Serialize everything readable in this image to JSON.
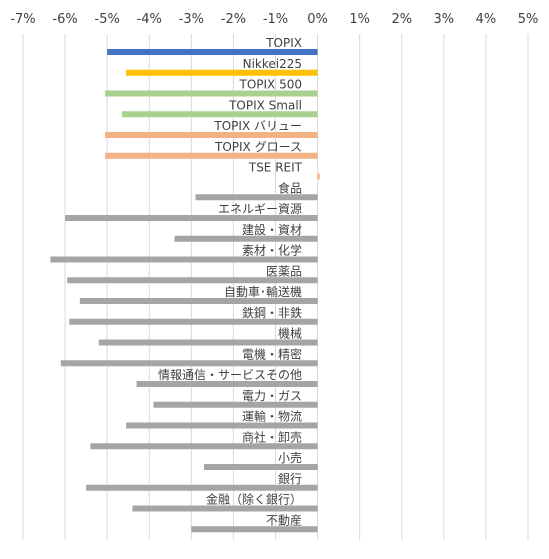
{
  "chart_data": {
    "type": "bar",
    "orientation": "horizontal",
    "xlim": [
      -7,
      5
    ],
    "tick_values": [
      -7,
      -6,
      -5,
      -4,
      -3,
      -2,
      -1,
      0,
      1,
      2,
      3,
      4,
      5
    ],
    "tick_labels": [
      "-7%",
      "-6%",
      "-5%",
      "-4%",
      "-3%",
      "-2%",
      "-1%",
      "0%",
      "1%",
      "2%",
      "3%",
      "4%",
      "5%"
    ],
    "axis_position": "top",
    "grid": "vertical",
    "legend": "none",
    "colors": {
      "topix": "#4472C4",
      "nikkei": "#FFC000",
      "green": "#A9D18E",
      "orange": "#F4B183",
      "sector": "#A5A5A5",
      "grid": "#D9D9D9",
      "text": "#404040"
    },
    "categories": [
      "TOPIX",
      "Nikkei225",
      "TOPIX 500",
      "TOPIX Small",
      "TOPIX バリュー",
      "TOPIX グロース",
      "TSE REIT",
      "食品",
      "エネルギー資源",
      "建設・資材",
      "素材・化学",
      "医薬品",
      "自動車･輸送機",
      "鉄鋼・非鉄",
      "機械",
      "電機・精密",
      "情報通信・サービスその他",
      "電力・ガス",
      "運輸・物流",
      "商社・卸売",
      "小売",
      "銀行",
      "金融（除く銀行）",
      "不動産"
    ],
    "values": [
      -5.0,
      -4.55,
      -5.05,
      -4.65,
      -5.05,
      -5.05,
      0.05,
      -2.9,
      -6.0,
      -3.4,
      -6.35,
      -5.95,
      -5.65,
      -5.9,
      -5.2,
      -6.1,
      -4.3,
      -3.9,
      -4.55,
      -5.4,
      -2.7,
      -5.5,
      -4.4,
      -3.0
    ],
    "bar_colors": [
      "topix",
      "nikkei",
      "green",
      "green",
      "orange",
      "orange",
      "orange",
      "sector",
      "sector",
      "sector",
      "sector",
      "sector",
      "sector",
      "sector",
      "sector",
      "sector",
      "sector",
      "sector",
      "sector",
      "sector",
      "sector",
      "sector",
      "sector",
      "sector"
    ]
  }
}
